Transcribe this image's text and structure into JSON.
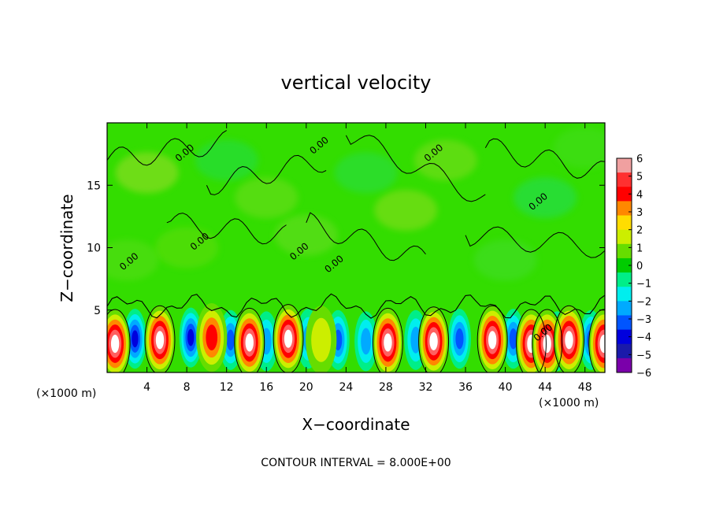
{
  "chart_data": {
    "type": "heatmap",
    "title": "vertical velocity",
    "xlabel": "X−coordinate",
    "ylabel": "Z−coordinate",
    "x_unit_left": "(×1000 m)",
    "x_unit_right": "(×1000 m)",
    "xlim": [
      0,
      50
    ],
    "ylim": [
      0,
      20
    ],
    "xticks": [
      4,
      8,
      12,
      16,
      20,
      24,
      28,
      32,
      36,
      40,
      44,
      48
    ],
    "yticks": [
      5,
      10,
      15
    ],
    "tick_labels_x": [
      "4",
      "8",
      "12",
      "16",
      "20",
      "24",
      "28",
      "32",
      "36",
      "40",
      "44",
      "48"
    ],
    "tick_labels_y": [
      "5",
      "10",
      "15"
    ],
    "colorbar": {
      "min": -6,
      "max": 6,
      "tick_labels": [
        "6",
        "5",
        "4",
        "3",
        "2",
        "1",
        "0",
        "−1",
        "−2",
        "−3",
        "−4",
        "−5",
        "−6"
      ],
      "colors": [
        "#f0a0a0",
        "#ff3030",
        "#ff0000",
        "#ff8800",
        "#ffdd00",
        "#ccee00",
        "#66dd00",
        "#00cc00",
        "#00ee88",
        "#00eeee",
        "#00aaff",
        "#0055ff",
        "#0000dd",
        "#1a1aaa",
        "#7a00aa"
      ]
    },
    "contour_labels": [
      "0.00",
      "0.00",
      "0.00",
      "0.00",
      "0.00",
      "0.00",
      "0.00",
      "0.00",
      "0.00"
    ],
    "updrafts": [
      {
        "x": 0.8,
        "z": 2.3,
        "w": 6
      },
      {
        "x": 5.3,
        "z": 2.6,
        "w": 6
      },
      {
        "x": 10.5,
        "z": 2.8,
        "w": 3.5
      },
      {
        "x": 14.3,
        "z": 2.4,
        "w": 6
      },
      {
        "x": 18.2,
        "z": 2.7,
        "w": 6
      },
      {
        "x": 21.5,
        "z": 2.6,
        "w": 2
      },
      {
        "x": 28.2,
        "z": 2.4,
        "w": 6
      },
      {
        "x": 32.8,
        "z": 2.5,
        "w": 6
      },
      {
        "x": 38.7,
        "z": 2.6,
        "w": 6
      },
      {
        "x": 42.6,
        "z": 2.3,
        "w": 6
      },
      {
        "x": 44.2,
        "z": 2.3,
        "w": 6
      },
      {
        "x": 46.4,
        "z": 2.6,
        "w": 6
      },
      {
        "x": 49.9,
        "z": 2.3,
        "w": 6
      }
    ],
    "downdrafts": [
      {
        "x": 2.8,
        "z": 2.7,
        "w": -5
      },
      {
        "x": 8.4,
        "z": 2.8,
        "w": -5
      },
      {
        "x": 12.4,
        "z": 2.6,
        "w": -4
      },
      {
        "x": 16.0,
        "z": 2.5,
        "w": -3
      },
      {
        "x": 20.2,
        "z": 2.7,
        "w": -3
      },
      {
        "x": 23.2,
        "z": 2.6,
        "w": -4
      },
      {
        "x": 26.0,
        "z": 2.5,
        "w": -3
      },
      {
        "x": 31.0,
        "z": 2.6,
        "w": -3
      },
      {
        "x": 35.4,
        "z": 2.7,
        "w": -4
      },
      {
        "x": 40.8,
        "z": 2.7,
        "w": -4
      },
      {
        "x": 45.2,
        "z": 2.5,
        "w": -3
      },
      {
        "x": 48.6,
        "z": 2.6,
        "w": -4
      }
    ],
    "contour_interval_text": "CONTOUR INTERVAL = 8.000E+00",
    "grid": false,
    "legend": "colorbar right"
  }
}
